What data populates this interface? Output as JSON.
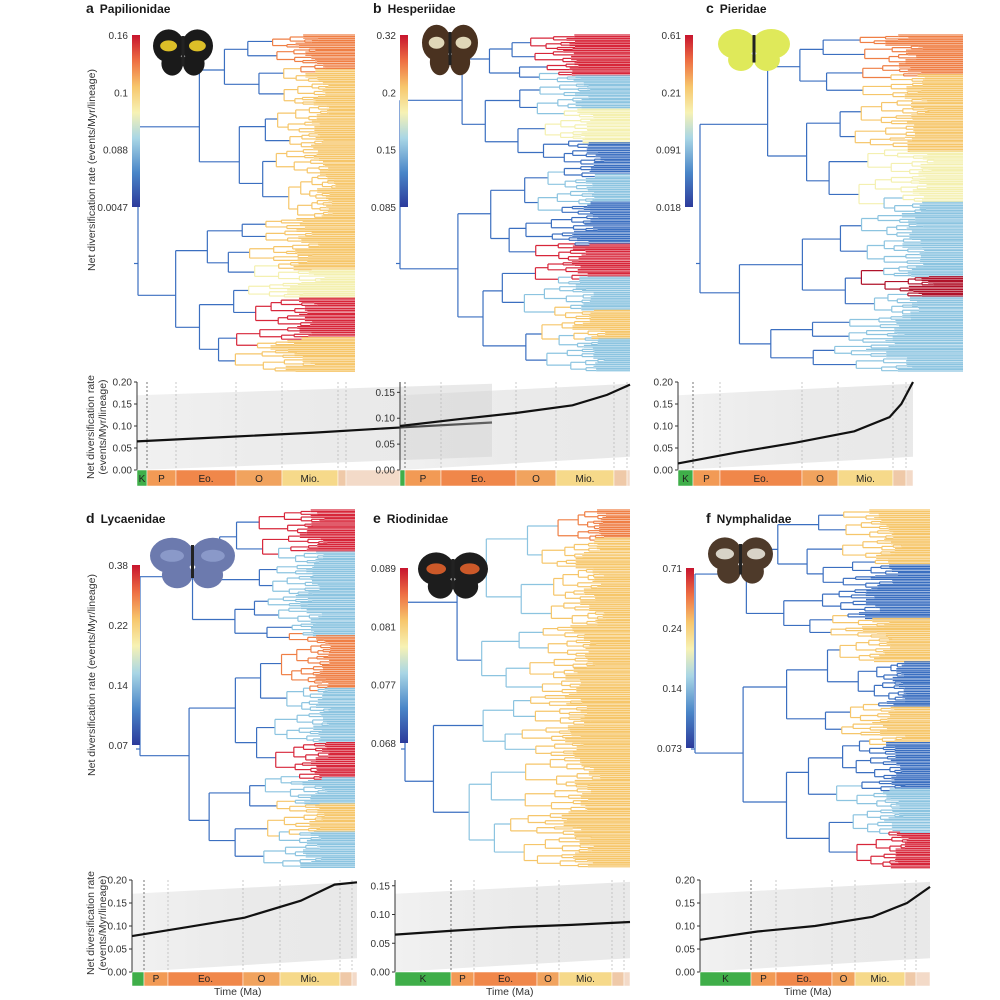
{
  "figure": {
    "tree_ylabel": "Net diversification rate (events/Myr/lineage)",
    "rtt_ylabel_line1": "Net diversification rate",
    "rtt_ylabel_line2": "(events/Myr/lineage)",
    "xlabel": "Time (Ma)"
  },
  "colors": {
    "scale": [
      "#2c3a9b",
      "#3b6fc0",
      "#8cc4e0",
      "#f4f0b0",
      "#f6c66a",
      "#ef7f45",
      "#d7263a",
      "#b0122a"
    ],
    "epoch_K": "#3fae49",
    "epoch_P": "#f29a55",
    "epoch_Eo": "#f0874a",
    "epoch_O": "#f1a35e",
    "epoch_Mio": "#f6d98a",
    "epoch_Pl": "#efc9a8",
    "epoch_Q": "#f3dac8"
  },
  "panels": [
    {
      "letter": "a",
      "family": "Papilionidae",
      "butterfly_icon": "swallowtail-butterfly-icon",
      "colorbar_ticks": [
        "0.16",
        "0.1",
        "0.088",
        "0.0047"
      ],
      "rtt": {
        "yticks": [
          "0.20",
          "0.15",
          "0.10",
          "0.05",
          "0.00"
        ],
        "epochs": [
          "K",
          "P",
          "Eo.",
          "O",
          "Mio.",
          "",
          ""
        ]
      }
    },
    {
      "letter": "b",
      "family": "Hesperiidae",
      "butterfly_icon": "skipper-butterfly-icon",
      "colorbar_ticks": [
        "0.32",
        "0.2",
        "0.15",
        "0.085"
      ],
      "rtt": {
        "yticks": [
          "0.15",
          "0.10",
          "0.05",
          "0.00"
        ],
        "epochs": [
          "",
          "P",
          "Eo.",
          "O",
          "Mio.",
          "",
          ""
        ]
      }
    },
    {
      "letter": "c",
      "family": "Pieridae",
      "butterfly_icon": "brimstone-butterfly-icon",
      "colorbar_ticks": [
        "0.61",
        "0.21",
        "0.091",
        "0.018"
      ],
      "rtt": {
        "yticks": [
          "0.20",
          "0.15",
          "0.10",
          "0.05",
          "0.00"
        ],
        "epochs": [
          "K",
          "P",
          "Eo.",
          "O",
          "Mio.",
          "",
          ""
        ]
      }
    },
    {
      "letter": "d",
      "family": "Lycaenidae",
      "butterfly_icon": "blue-butterfly-icon",
      "colorbar_ticks": [
        "0.38",
        "0.22",
        "0.14",
        "0.07"
      ],
      "rtt": {
        "yticks": [
          "0.20",
          "0.15",
          "0.10",
          "0.05",
          "0.00"
        ],
        "epochs": [
          "",
          "P",
          "Eo.",
          "O",
          "Mio.",
          "",
          ""
        ]
      }
    },
    {
      "letter": "e",
      "family": "Riodinidae",
      "butterfly_icon": "metalmark-butterfly-icon",
      "colorbar_ticks": [
        "0.089",
        "0.081",
        "0.077",
        "0.068"
      ],
      "rtt": {
        "yticks": [
          "0.15",
          "0.10",
          "0.05",
          "0.00"
        ],
        "epochs": [
          "K",
          "P",
          "Eo.",
          "O",
          "Mio.",
          "",
          ""
        ]
      }
    },
    {
      "letter": "f",
      "family": "Nymphalidae",
      "butterfly_icon": "brushfoot-butterfly-icon",
      "colorbar_ticks": [
        "0.71",
        "0.24",
        "0.14",
        "0.073"
      ],
      "rtt": {
        "yticks": [
          "0.20",
          "0.15",
          "0.10",
          "0.05",
          "0.00"
        ],
        "epochs": [
          "K",
          "P",
          "Eo.",
          "O",
          "Mio.",
          "",
          ""
        ]
      }
    }
  ],
  "chart_data": [
    {
      "type": "line",
      "title": "Papilionidae",
      "xlabel": "",
      "ylabel": "Net diversification rate (events/Myr/lineage)",
      "ylim": [
        0,
        0.2
      ],
      "x": [
        0,
        0.25,
        0.5,
        0.75,
        1
      ],
      "values": [
        0.065,
        0.075,
        0.085,
        0.097,
        0.108
      ]
    },
    {
      "type": "line",
      "title": "Hesperiidae",
      "xlabel": "",
      "ylabel": "",
      "ylim": [
        0,
        0.17
      ],
      "x": [
        0,
        0.25,
        0.5,
        0.75,
        0.9,
        1
      ],
      "values": [
        0.085,
        0.098,
        0.11,
        0.125,
        0.145,
        0.165
      ]
    },
    {
      "type": "line",
      "title": "Pieridae",
      "xlabel": "",
      "ylabel": "",
      "ylim": [
        0,
        0.2
      ],
      "x": [
        0,
        0.25,
        0.5,
        0.75,
        0.9,
        0.95,
        1
      ],
      "values": [
        0.015,
        0.04,
        0.062,
        0.088,
        0.12,
        0.15,
        0.2
      ]
    },
    {
      "type": "line",
      "title": "Lycaenidae",
      "xlabel": "Time (Ma)",
      "ylabel": "Net diversification rate (events/Myr/lineage)",
      "ylim": [
        0,
        0.2
      ],
      "x": [
        0,
        0.25,
        0.5,
        0.75,
        0.9,
        1
      ],
      "values": [
        0.078,
        0.098,
        0.118,
        0.155,
        0.19,
        0.195
      ]
    },
    {
      "type": "line",
      "title": "Riodinidae",
      "xlabel": "Time (Ma)",
      "ylabel": "",
      "ylim": [
        0,
        0.16
      ],
      "x": [
        0,
        0.25,
        0.5,
        0.75,
        1
      ],
      "values": [
        0.065,
        0.072,
        0.078,
        0.082,
        0.087
      ]
    },
    {
      "type": "line",
      "title": "Nymphalidae",
      "xlabel": "Time (Ma)",
      "ylabel": "",
      "ylim": [
        0,
        0.2
      ],
      "x": [
        0,
        0.25,
        0.5,
        0.75,
        0.9,
        1
      ],
      "values": [
        0.07,
        0.088,
        0.1,
        0.12,
        0.15,
        0.185
      ]
    }
  ]
}
